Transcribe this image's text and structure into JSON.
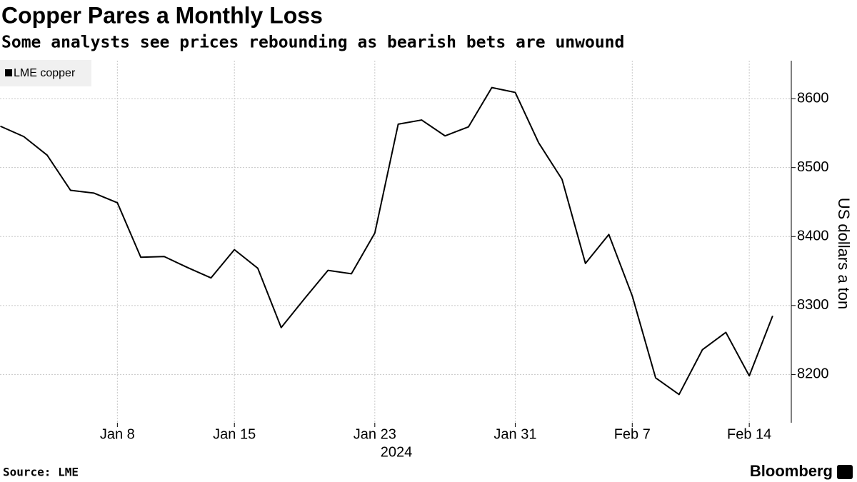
{
  "chart_data": {
    "type": "line",
    "title": "Copper Pares a Monthly Loss",
    "subtitle": "Some analysts see prices rebounding as bearish bets are unwound",
    "y_axis_title": "US dollars a ton",
    "x_axis_year": "2024",
    "categories": [
      null,
      null,
      null,
      null,
      null,
      "Jan 8",
      null,
      null,
      null,
      null,
      "Jan 15",
      null,
      null,
      null,
      null,
      null,
      "Jan 23",
      null,
      null,
      null,
      null,
      null,
      "Jan 31",
      null,
      null,
      null,
      null,
      "Feb 7",
      null,
      null,
      null,
      null,
      "Feb 14",
      null
    ],
    "series": [
      {
        "name": "LME copper",
        "color": "#000000",
        "values": [
          8560,
          8545,
          8518,
          8467,
          8463,
          8449,
          8370,
          8371,
          8355,
          8340,
          8381,
          8354,
          8268,
          8310,
          8351,
          8346,
          8405,
          8563,
          8569,
          8546,
          8559,
          8616,
          8609,
          8536,
          8483,
          8361,
          8403,
          8314,
          8195,
          8171,
          8236,
          8261,
          8198,
          8285
        ]
      }
    ],
    "ylim": [
      8130,
      8655
    ],
    "yticks": [
      8200,
      8300,
      8400,
      8500,
      8600
    ],
    "grid": true,
    "legend": "top-left",
    "source": "Source: LME",
    "brand": "Bloomberg"
  }
}
